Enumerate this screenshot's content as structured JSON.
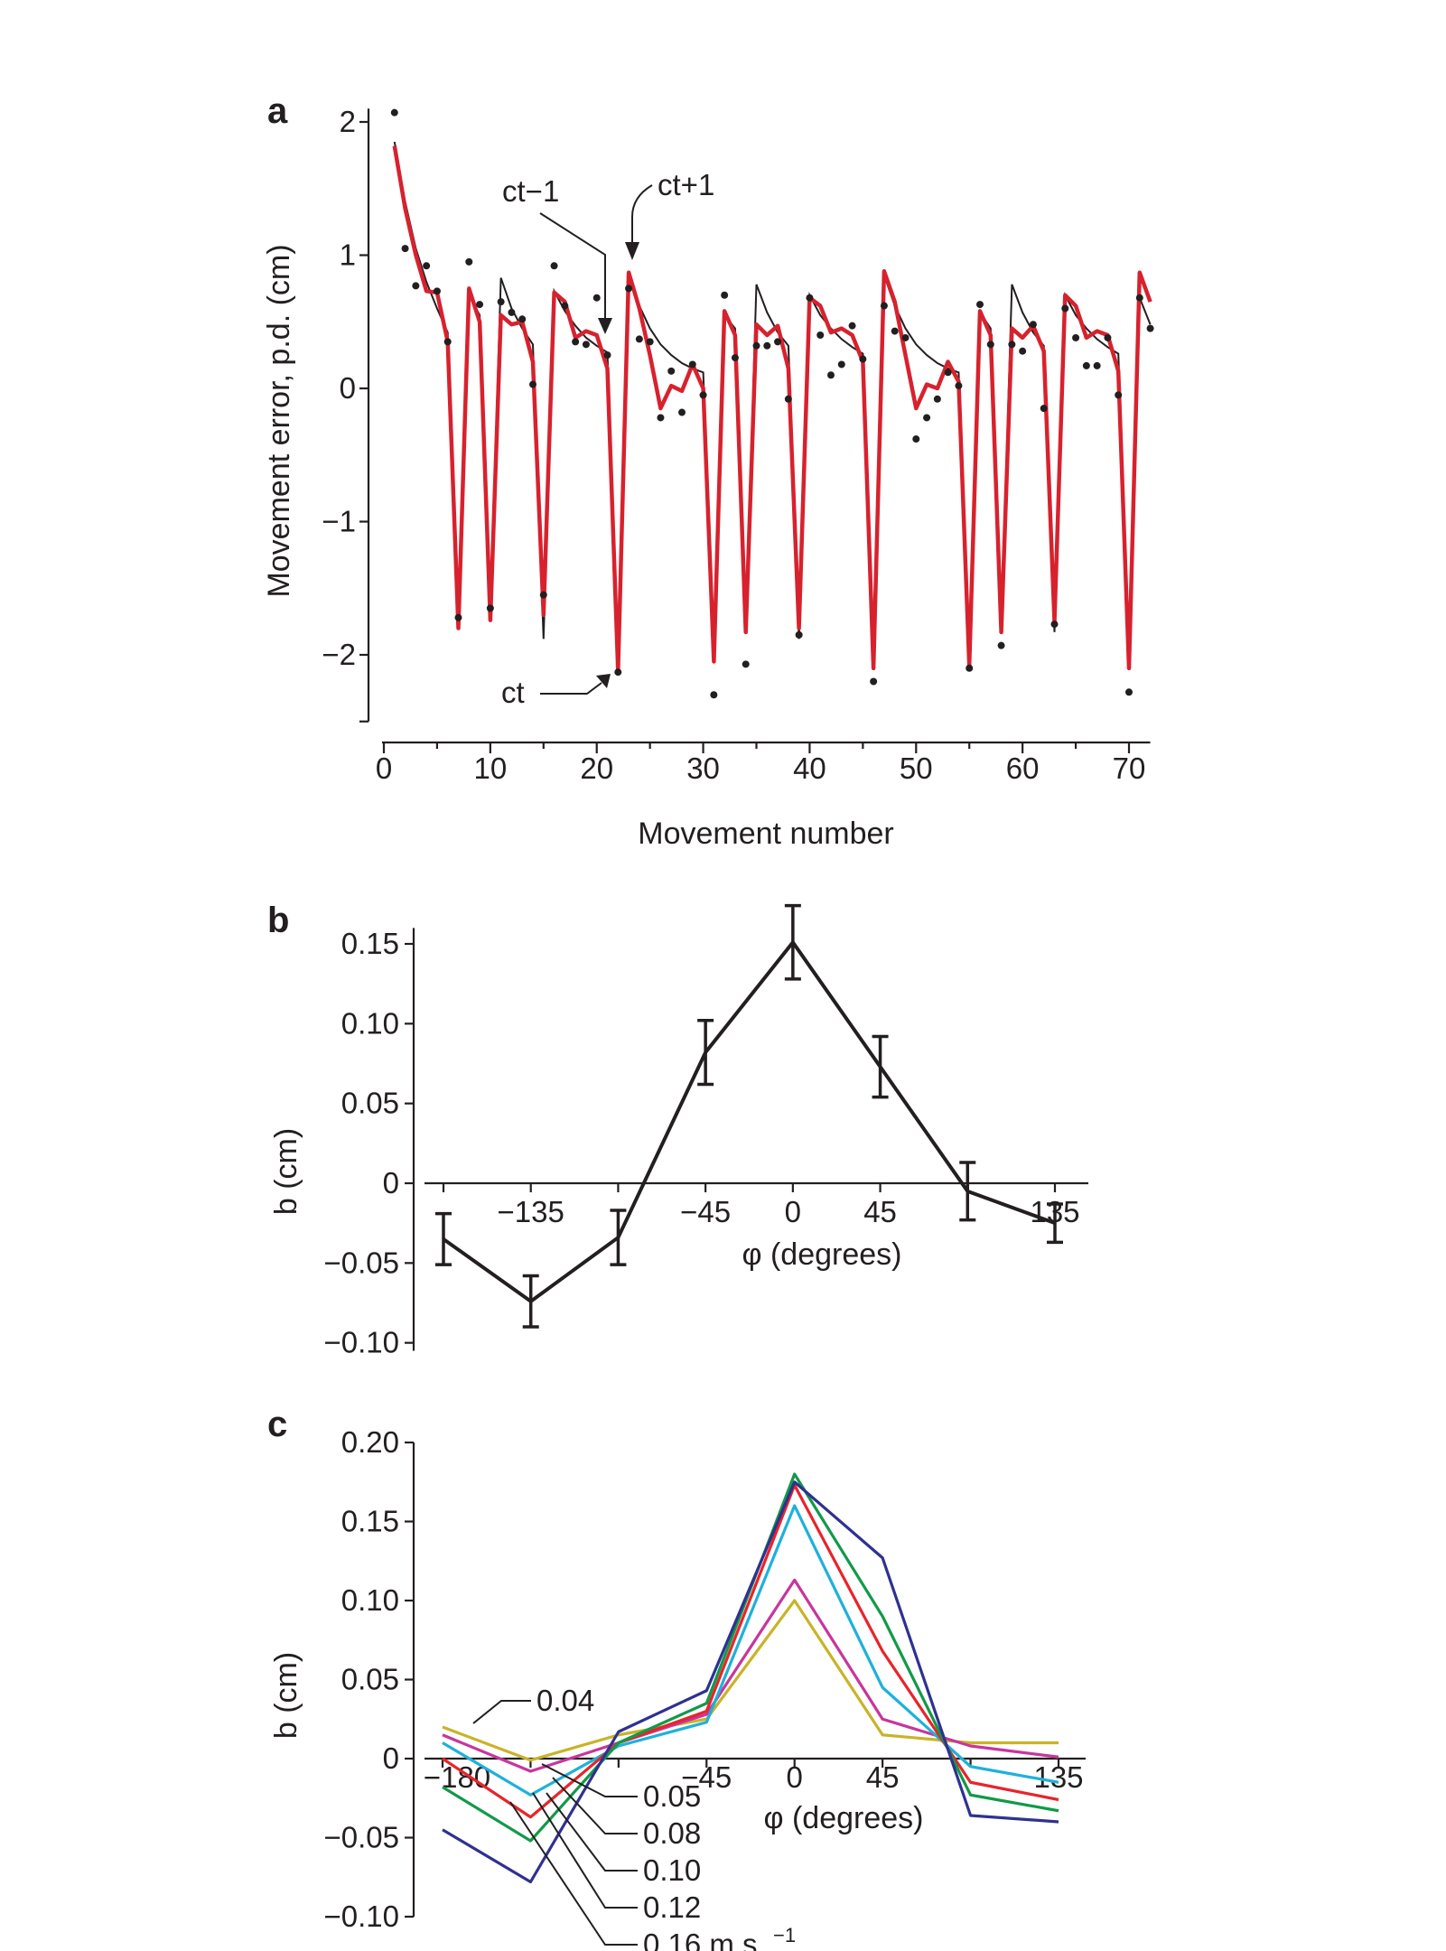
{
  "chart_data": [
    {
      "panel": "a",
      "type": "line",
      "xlabel": "Movement number",
      "ylabel": "Movement error, p.d. (cm)",
      "xlim": [
        0,
        72
      ],
      "ylim": [
        -2.5,
        2.1
      ],
      "xticks": [
        0,
        10,
        20,
        30,
        40,
        50,
        60,
        70
      ],
      "yticks": [
        2,
        1,
        0,
        -1,
        -2
      ],
      "ytick_labels": [
        "2",
        "1",
        "0",
        "−1",
        "−2"
      ],
      "annotations": [
        {
          "text": "ct−1",
          "x": 21.5,
          "y": 0.3
        },
        {
          "text": "ct+1",
          "x": 23,
          "y": 0.95
        },
        {
          "text": "ct",
          "x": 21.5,
          "y": -2.1
        }
      ],
      "colors": {
        "model": "#d7222e",
        "fit": "#231f20",
        "dots": "#231f20"
      },
      "series": [
        {
          "style": "red-line",
          "x": [
            1,
            2,
            3,
            4,
            5,
            6,
            7,
            8,
            9,
            10,
            11,
            12,
            13,
            14,
            15,
            16,
            17,
            18,
            19,
            20,
            21,
            22,
            23,
            24,
            25,
            26,
            27,
            28,
            29,
            30,
            31,
            32,
            33,
            34,
            35,
            36,
            37,
            38,
            39,
            40,
            41,
            42,
            43,
            44,
            45,
            46,
            47,
            48,
            49,
            50,
            51,
            52,
            53,
            54,
            55,
            56,
            57,
            58,
            59,
            60,
            61,
            62,
            63,
            64,
            65,
            66,
            67,
            68,
            69,
            70,
            71,
            72
          ],
          "values": [
            1.82,
            1.35,
            1.0,
            0.73,
            0.72,
            0.35,
            -1.8,
            0.75,
            0.5,
            -1.74,
            0.55,
            0.48,
            0.5,
            0.2,
            -1.7,
            0.72,
            0.65,
            0.38,
            0.43,
            0.4,
            0.15,
            -2.12,
            0.87,
            0.6,
            0.25,
            -0.15,
            0.02,
            -0.02,
            0.18,
            0.0,
            -2.05,
            0.58,
            0.4,
            -1.83,
            0.48,
            0.4,
            0.47,
            0.15,
            -1.8,
            0.68,
            0.62,
            0.42,
            0.45,
            0.4,
            0.2,
            -2.1,
            0.88,
            0.65,
            0.25,
            -0.15,
            0.03,
            0.0,
            0.2,
            0.05,
            -2.08,
            0.58,
            0.4,
            -1.83,
            0.45,
            0.38,
            0.47,
            0.28,
            -1.75,
            0.7,
            0.62,
            0.38,
            0.43,
            0.4,
            0.13,
            -2.1,
            0.87,
            0.65
          ]
        },
        {
          "style": "black-line",
          "x": [
            1,
            2,
            3,
            4,
            5,
            6,
            7,
            8,
            9,
            10,
            11,
            12,
            13,
            14,
            15,
            16,
            17,
            18,
            19,
            20,
            21,
            22,
            23,
            24,
            25,
            26,
            27,
            28,
            29,
            30,
            31,
            32,
            33,
            34,
            35,
            36,
            37,
            38,
            39,
            40,
            41,
            42,
            43,
            44,
            45,
            46,
            47,
            48,
            49,
            50,
            51,
            52,
            53,
            54,
            55,
            56,
            57,
            58,
            59,
            60,
            61,
            62,
            63,
            64,
            65,
            66,
            67,
            68,
            69,
            70,
            71,
            72
          ],
          "values": [
            1.85,
            1.4,
            1.05,
            0.8,
            0.6,
            0.42,
            -1.75,
            0.7,
            0.55,
            -1.7,
            0.83,
            0.6,
            0.45,
            0.33,
            -1.88,
            0.73,
            0.58,
            0.47,
            0.38,
            0.32,
            0.27,
            -2.1,
            0.85,
            0.62,
            0.45,
            0.33,
            0.25,
            0.19,
            0.15,
            0.12,
            -2.0,
            0.55,
            0.45,
            -1.8,
            0.78,
            0.57,
            0.42,
            0.32,
            -1.88,
            0.7,
            0.55,
            0.45,
            0.37,
            0.31,
            0.26,
            -2.05,
            0.85,
            0.62,
            0.45,
            0.33,
            0.25,
            0.19,
            0.15,
            0.12,
            -2.02,
            0.57,
            0.45,
            -1.82,
            0.78,
            0.57,
            0.42,
            0.32,
            -1.83,
            0.7,
            0.55,
            0.45,
            0.37,
            0.31,
            0.26,
            -2.02,
            0.68,
            0.48
          ]
        },
        {
          "style": "dots",
          "x": [
            1,
            2,
            3,
            4,
            5,
            6,
            7,
            8,
            9,
            10,
            11,
            12,
            13,
            14,
            15,
            16,
            17,
            18,
            19,
            20,
            21,
            22,
            23,
            24,
            25,
            26,
            27,
            28,
            29,
            30,
            31,
            32,
            33,
            34,
            35,
            36,
            37,
            38,
            39,
            40,
            41,
            42,
            43,
            44,
            45,
            46,
            47,
            48,
            49,
            50,
            51,
            52,
            53,
            54,
            55,
            56,
            57,
            58,
            59,
            60,
            61,
            62,
            63,
            64,
            65,
            66,
            67,
            68,
            69,
            70,
            71,
            72
          ],
          "values": [
            2.07,
            1.05,
            0.77,
            0.92,
            0.73,
            0.35,
            -1.72,
            0.95,
            0.63,
            -1.65,
            0.65,
            0.57,
            0.52,
            0.03,
            -1.55,
            0.92,
            0.62,
            0.35,
            0.33,
            0.68,
            0.25,
            -2.13,
            0.75,
            0.37,
            0.35,
            -0.22,
            0.13,
            -0.18,
            0.18,
            -0.05,
            -2.3,
            0.7,
            0.23,
            -2.07,
            0.32,
            0.32,
            0.35,
            -0.08,
            -1.85,
            0.68,
            0.4,
            0.1,
            0.18,
            0.47,
            0.22,
            -2.2,
            0.62,
            0.43,
            0.38,
            -0.38,
            -0.22,
            -0.08,
            0.12,
            0.02,
            -2.1,
            0.63,
            0.33,
            -1.93,
            0.33,
            0.28,
            0.48,
            -0.15,
            -1.77,
            0.6,
            0.38,
            0.17,
            0.17,
            0.38,
            -0.05,
            -2.28,
            0.68,
            0.45
          ]
        }
      ]
    },
    {
      "panel": "b",
      "type": "line",
      "xlabel": "φ (degrees)",
      "ylabel": "b (cm)",
      "xlim": [
        -185,
        142
      ],
      "ylim": [
        -0.105,
        0.16
      ],
      "xticks": [
        -135,
        -45,
        0,
        45,
        135
      ],
      "xtick_labels": [
        "−135",
        "−45",
        "0",
        "45",
        "135"
      ],
      "xminor_ticks": [
        -180,
        -90,
        90
      ],
      "yticks": [
        0.15,
        0.1,
        0.05,
        0,
        -0.05,
        -0.1
      ],
      "ytick_labels": [
        "0.15",
        "0.10",
        "0.05",
        "0",
        "−0.05",
        "−0.10"
      ],
      "x": [
        -180,
        -135,
        -90,
        -45,
        0,
        45,
        90,
        135
      ],
      "values": [
        -0.035,
        -0.074,
        -0.034,
        0.082,
        0.151,
        0.073,
        -0.005,
        -0.025
      ],
      "errors": [
        0.016,
        0.016,
        0.017,
        0.02,
        0.023,
        0.019,
        0.018,
        0.012
      ],
      "color": "#231f20"
    },
    {
      "panel": "c",
      "type": "line",
      "xlabel": "φ (degrees)",
      "ylabel": "b (cm)",
      "xlim": [
        -190,
        148
      ],
      "ylim": [
        -0.1,
        0.2
      ],
      "xticks": [
        -180,
        -45,
        0,
        45,
        135
      ],
      "xtick_labels": [
        "−180",
        "−45",
        "0",
        "45",
        "135"
      ],
      "yticks": [
        0.2,
        0.15,
        0.1,
        0.05,
        0,
        -0.05,
        -0.1
      ],
      "ytick_labels": [
        "0.20",
        "0.15",
        "0.10",
        "0.05",
        "0",
        "−0.05",
        "−0.10"
      ],
      "x": [
        -180,
        -135,
        -90,
        -45,
        0,
        45,
        90,
        135
      ],
      "series": [
        {
          "name": "0.04",
          "color": "#c8b428",
          "values": [
            0.02,
            -0.001,
            0.015,
            0.025,
            0.1,
            0.015,
            0.01,
            0.01
          ]
        },
        {
          "name": "0.05",
          "color": "#c8359e",
          "values": [
            0.015,
            -0.008,
            0.01,
            0.028,
            0.113,
            0.025,
            0.008,
            0.001
          ]
        },
        {
          "name": "0.08",
          "color": "#1eb1db",
          "values": [
            0.01,
            -0.023,
            0.008,
            0.023,
            0.16,
            0.045,
            -0.005,
            -0.015
          ]
        },
        {
          "name": "0.10",
          "color": "#e8242a",
          "values": [
            0.0,
            -0.037,
            0.01,
            0.03,
            0.173,
            0.068,
            -0.015,
            -0.026
          ]
        },
        {
          "name": "0.12",
          "color": "#119a48",
          "values": [
            -0.018,
            -0.052,
            0.01,
            0.035,
            0.18,
            0.09,
            -0.023,
            -0.033
          ]
        },
        {
          "name": "0.16 m s⁻¹",
          "color": "#2f3190",
          "values": [
            -0.045,
            -0.078,
            0.017,
            0.043,
            0.175,
            0.127,
            -0.036,
            -0.04
          ]
        }
      ],
      "legend_labels": [
        "0.04",
        "0.05",
        "0.08",
        "0.10",
        "0.12",
        "0.16 m s"
      ],
      "legend_superscript": "−1"
    }
  ],
  "panel_letters": [
    "a",
    "b",
    "c"
  ]
}
